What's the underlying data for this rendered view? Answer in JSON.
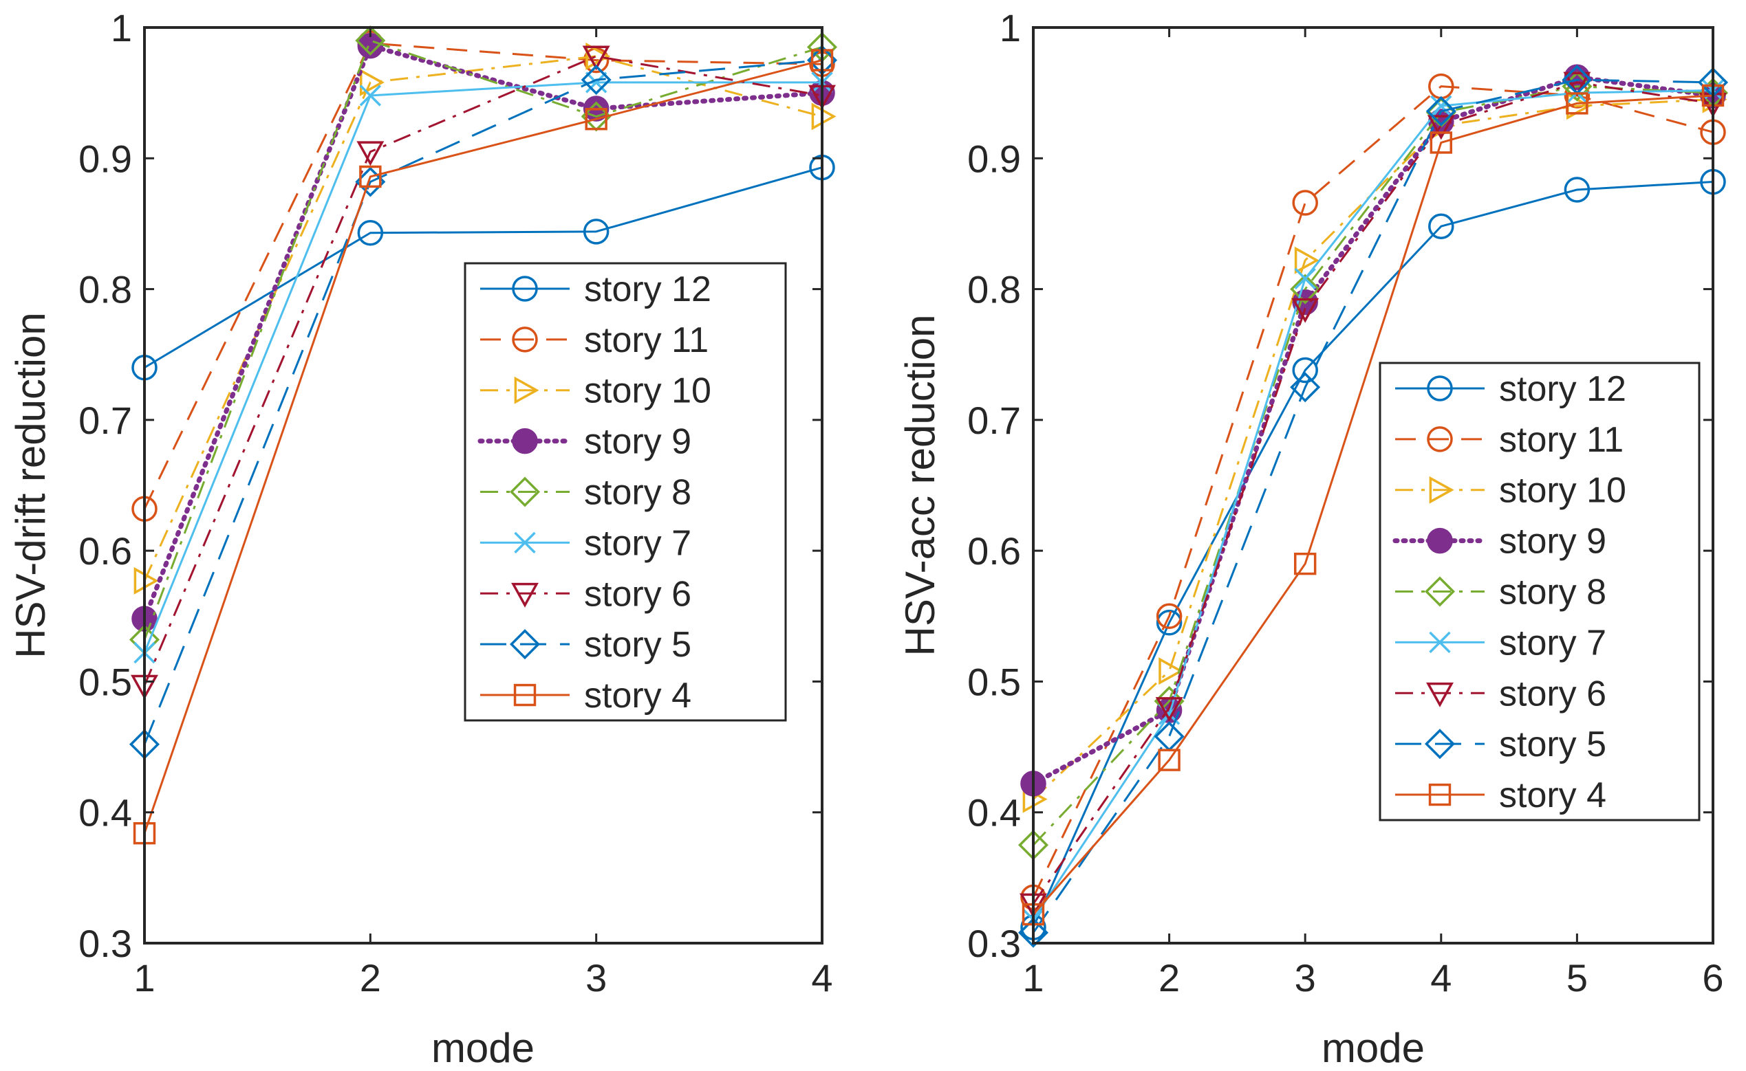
{
  "chart_data": [
    {
      "type": "line",
      "title": "",
      "xlabel": "mode",
      "ylabel": "HSV-drift reduction",
      "xlim": [
        1,
        4
      ],
      "ylim": [
        0.3,
        1
      ],
      "xticks": [
        "1",
        "2",
        "3",
        "4"
      ],
      "yticks": [
        "0.3",
        "0.4",
        "0.5",
        "0.6",
        "0.7",
        "0.8",
        "0.9",
        "1"
      ],
      "legend_position": "right",
      "x": [
        1,
        2,
        3,
        4
      ],
      "series": [
        {
          "name": "story 12",
          "values": [
            0.74,
            0.843,
            0.844,
            0.893
          ]
        },
        {
          "name": "story 11",
          "values": [
            0.632,
            0.988,
            0.975,
            0.972
          ]
        },
        {
          "name": "story 10",
          "values": [
            0.577,
            0.958,
            0.978,
            0.932
          ]
        },
        {
          "name": "story 9",
          "values": [
            0.548,
            0.986,
            0.938,
            0.95
          ]
        },
        {
          "name": "story 8",
          "values": [
            0.532,
            0.99,
            0.932,
            0.985
          ]
        },
        {
          "name": "story 7",
          "values": [
            0.522,
            0.948,
            0.958,
            0.958
          ]
        },
        {
          "name": "story 6",
          "values": [
            0.497,
            0.905,
            0.978,
            0.948
          ]
        },
        {
          "name": "story 5",
          "values": [
            0.452,
            0.882,
            0.96,
            0.975
          ]
        },
        {
          "name": "story 4",
          "values": [
            0.384,
            0.886,
            0.93,
            0.975
          ]
        }
      ]
    },
    {
      "type": "line",
      "title": "",
      "xlabel": "mode",
      "ylabel": "HSV-acc reduction",
      "xlim": [
        1,
        6
      ],
      "ylim": [
        0.3,
        1
      ],
      "xticks": [
        "1",
        "2",
        "3",
        "4",
        "5",
        "6"
      ],
      "yticks": [
        "0.3",
        "0.4",
        "0.5",
        "0.6",
        "0.7",
        "0.8",
        "0.9",
        "1"
      ],
      "legend_position": "bottom-right",
      "x": [
        1,
        2,
        3,
        4,
        5,
        6
      ],
      "series": [
        {
          "name": "story 12",
          "values": [
            0.312,
            0.545,
            0.738,
            0.848,
            0.876,
            0.882
          ]
        },
        {
          "name": "story 11",
          "values": [
            0.335,
            0.55,
            0.866,
            0.955,
            0.948,
            0.92
          ]
        },
        {
          "name": "story 10",
          "values": [
            0.41,
            0.508,
            0.822,
            0.925,
            0.94,
            0.945
          ]
        },
        {
          "name": "story 9",
          "values": [
            0.422,
            0.478,
            0.79,
            0.928,
            0.962,
            0.948
          ]
        },
        {
          "name": "story 8",
          "values": [
            0.375,
            0.485,
            0.8,
            0.935,
            0.955,
            0.95
          ]
        },
        {
          "name": "story 7",
          "values": [
            0.318,
            0.475,
            0.808,
            0.94,
            0.95,
            0.952
          ]
        },
        {
          "name": "story 6",
          "values": [
            0.33,
            0.48,
            0.785,
            0.925,
            0.958,
            0.942
          ]
        },
        {
          "name": "story 5",
          "values": [
            0.308,
            0.458,
            0.725,
            0.936,
            0.96,
            0.958
          ]
        },
        {
          "name": "story 4",
          "values": [
            0.322,
            0.44,
            0.59,
            0.912,
            0.942,
            0.948
          ]
        }
      ]
    }
  ],
  "styles": [
    {
      "color": "#0072BD",
      "dash": "solid",
      "marker": "circle",
      "width": 3
    },
    {
      "color": "#D95319",
      "dash": "dashed",
      "marker": "circle",
      "width": 3
    },
    {
      "color": "#EDB120",
      "dash": "dashdot",
      "marker": "triangle-right",
      "width": 3
    },
    {
      "color": "#7E2F8E",
      "dash": "dotted",
      "marker": "circle-filled",
      "width": 7
    },
    {
      "color": "#77AC30",
      "dash": "dashdot",
      "marker": "diamond",
      "width": 3
    },
    {
      "color": "#4DBEEE",
      "dash": "solid",
      "marker": "x",
      "width": 3
    },
    {
      "color": "#A2142F",
      "dash": "dashdot",
      "marker": "triangle-down",
      "width": 3
    },
    {
      "color": "#0072BD",
      "dash": "longdash",
      "marker": "diamond",
      "width": 3
    },
    {
      "color": "#D95319",
      "dash": "solid",
      "marker": "square",
      "width": 3
    }
  ]
}
